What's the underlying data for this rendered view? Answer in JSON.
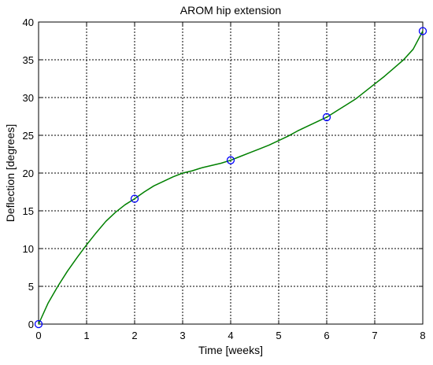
{
  "chart_data": {
    "type": "line",
    "title": "AROM hip extension",
    "xlabel": "Time [weeks]",
    "ylabel": "Deflection [degrees]",
    "xlim": [
      0,
      8
    ],
    "ylim": [
      0,
      40
    ],
    "xticks": [
      0,
      1,
      2,
      3,
      4,
      5,
      6,
      7,
      8
    ],
    "yticks": [
      0,
      5,
      10,
      15,
      20,
      25,
      30,
      35,
      40
    ],
    "grid": true,
    "legend": "none",
    "series": [
      {
        "style": "line",
        "color": "#008000",
        "x": [
          0,
          0.2,
          0.4,
          0.6,
          0.8,
          1.0,
          1.2,
          1.4,
          1.6,
          1.8,
          2.0,
          2.2,
          2.4,
          2.6,
          2.8,
          3.0,
          3.2,
          3.4,
          3.6,
          3.8,
          4.0,
          4.2,
          4.4,
          4.6,
          4.8,
          5.0,
          5.2,
          5.4,
          5.6,
          5.8,
          6.0,
          6.2,
          6.4,
          6.6,
          6.8,
          7.0,
          7.2,
          7.4,
          7.6,
          7.8,
          8.0
        ],
        "y": [
          0,
          2.8,
          5.0,
          7.0,
          8.8,
          10.5,
          12.1,
          13.6,
          14.8,
          15.8,
          16.6,
          17.5,
          18.3,
          18.9,
          19.5,
          20.0,
          20.3,
          20.7,
          21.0,
          21.3,
          21.7,
          22.2,
          22.7,
          23.2,
          23.7,
          24.3,
          24.9,
          25.6,
          26.2,
          26.8,
          27.4,
          28.2,
          29.0,
          29.8,
          30.8,
          31.8,
          32.8,
          33.9,
          35.0,
          36.4,
          38.8
        ]
      },
      {
        "style": "markers",
        "color": "#0000ff",
        "marker": "circle",
        "x": [
          0,
          2,
          4,
          6,
          8
        ],
        "y": [
          0,
          16.6,
          21.7,
          27.4,
          38.8
        ]
      }
    ]
  }
}
